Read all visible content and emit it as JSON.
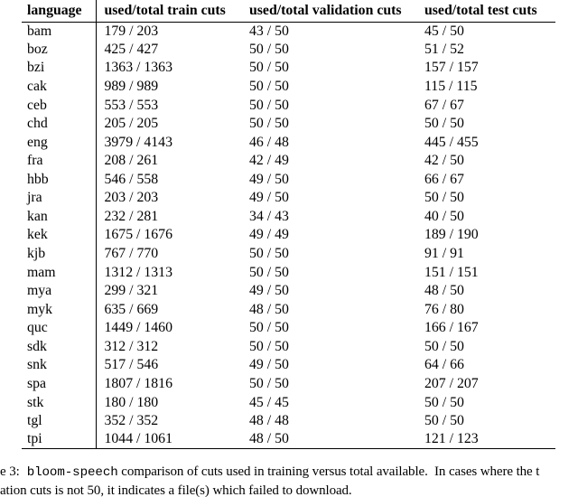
{
  "table": {
    "headers": [
      "language",
      "used/total train cuts",
      "used/total validation cuts",
      "used/total test cuts"
    ],
    "col_keys": [
      "language",
      "train-cuts",
      "validation-cuts",
      "test-cuts"
    ],
    "rows": [
      [
        "bam",
        "179 / 203",
        "43 / 50",
        "45 / 50"
      ],
      [
        "boz",
        "425 / 427",
        "50 / 50",
        "51 / 52"
      ],
      [
        "bzi",
        "1363 / 1363",
        "50 / 50",
        "157 / 157"
      ],
      [
        "cak",
        "989 / 989",
        "50 / 50",
        "115 / 115"
      ],
      [
        "ceb",
        "553 / 553",
        "50 / 50",
        "67 / 67"
      ],
      [
        "chd",
        "205 / 205",
        "50 / 50",
        "50 / 50"
      ],
      [
        "eng",
        "3979 / 4143",
        "46 / 48",
        "445 / 455"
      ],
      [
        "fra",
        "208 / 261",
        "42 / 49",
        "42 / 50"
      ],
      [
        "hbb",
        "546 / 558",
        "49 / 50",
        "66 / 67"
      ],
      [
        "jra",
        "203 / 203",
        "49 / 50",
        "50 / 50"
      ],
      [
        "kan",
        "232 / 281",
        "34 / 43",
        "40 / 50"
      ],
      [
        "kek",
        "1675 / 1676",
        "49 / 49",
        "189 / 190"
      ],
      [
        "kjb",
        "767 / 770",
        "50 / 50",
        "91 / 91"
      ],
      [
        "mam",
        "1312 / 1313",
        "50 / 50",
        "151 / 151"
      ],
      [
        "mya",
        "299 / 321",
        "49 / 50",
        "48 / 50"
      ],
      [
        "myk",
        "635 / 669",
        "48 / 50",
        "76 / 80"
      ],
      [
        "quc",
        "1449 / 1460",
        "50 / 50",
        "166 / 167"
      ],
      [
        "sdk",
        "312 / 312",
        "50 / 50",
        "50 / 50"
      ],
      [
        "snk",
        "517 / 546",
        "49 / 50",
        "64 / 66"
      ],
      [
        "spa",
        "1807 / 1816",
        "50 / 50",
        "207 / 207"
      ],
      [
        "stk",
        "180 / 180",
        "45 / 45",
        "50 / 50"
      ],
      [
        "tgl",
        "352 / 352",
        "48 / 48",
        "50 / 50"
      ],
      [
        "tpi",
        "1044 / 1061",
        "48 / 50",
        "121 / 123"
      ]
    ]
  },
  "caption": {
    "prefix": "e 3:",
    "code": "bloom-speech",
    "line1_rest": " comparison of cuts used in training versus total available.  In cases where the t",
    "line2": "ation cuts is not 50, it indicates a file(s) which failed to download."
  },
  "colors": {
    "text": "#000000",
    "background": "#ffffff",
    "rule": "#000000"
  }
}
